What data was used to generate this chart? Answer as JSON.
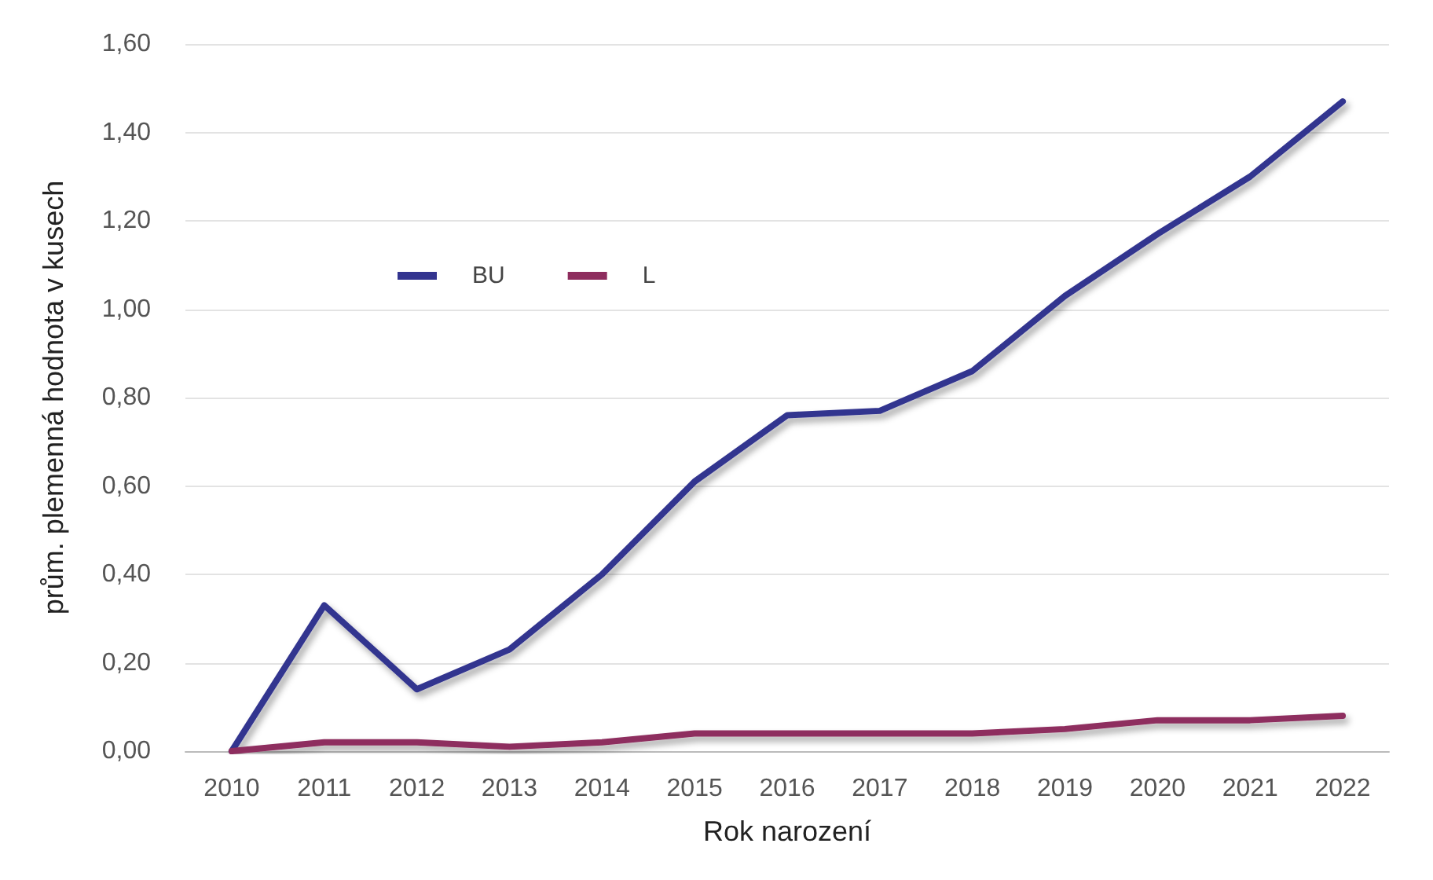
{
  "chart_data": {
    "type": "line",
    "xlabel": "Rok narození",
    "ylabel": "prům. plemenná hodnota v kusech",
    "categories": [
      "2010",
      "2011",
      "2012",
      "2013",
      "2014",
      "2015",
      "2016",
      "2017",
      "2018",
      "2019",
      "2020",
      "2021",
      "2022"
    ],
    "series": [
      {
        "name": "BU",
        "color": "#33348f",
        "values": [
          0,
          0.33,
          0.14,
          0.23,
          0.4,
          0.61,
          0.76,
          0.77,
          0.86,
          1.03,
          1.17,
          1.3,
          1.47
        ]
      },
      {
        "name": "L",
        "color": "#8e2d5e",
        "values": [
          0,
          0.02,
          0.02,
          0.01,
          0.02,
          0.04,
          0.04,
          0.04,
          0.04,
          0.05,
          0.07,
          0.07,
          0.08
        ]
      }
    ],
    "ylim": [
      0,
      1.6
    ],
    "yticks": [
      {
        "value": 0,
        "label": "0,00"
      },
      {
        "value": 0.2,
        "label": "0,20"
      },
      {
        "value": 0.4,
        "label": "0,40"
      },
      {
        "value": 0.6,
        "label": "0,60"
      },
      {
        "value": 0.8,
        "label": "0,80"
      },
      {
        "value": 1.0,
        "label": "1,00"
      },
      {
        "value": 1.2,
        "label": "1,20"
      },
      {
        "value": 1.4,
        "label": "1,40"
      },
      {
        "value": 1.6,
        "label": "1,60"
      }
    ],
    "grid": "y",
    "legend": "top left",
    "marker": "none",
    "line_style": "solid"
  }
}
